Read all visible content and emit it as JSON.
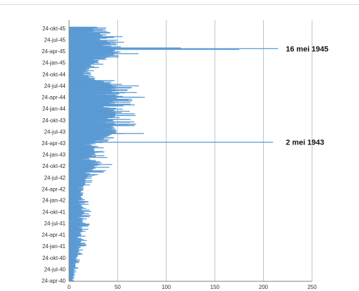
{
  "chart_data": {
    "type": "bar",
    "orientation": "horizontal",
    "title": "",
    "xlabel": "",
    "ylabel": "",
    "xlim": [
      0,
      250
    ],
    "x_ticks": [
      "0",
      "50",
      "100",
      "150",
      "200",
      "250"
    ],
    "y_tick_labels": [
      "24-apr-40",
      "24-jul-40",
      "24-okt-40",
      "24-jan-41",
      "24-apr-41",
      "24-jul-41",
      "24-okt-41",
      "24-jan-42",
      "24-apr-42",
      "24-jul-42",
      "24-okt-42",
      "24-jan-43",
      "24-apr-43",
      "24-jul-43",
      "24-okt-43",
      "24-jan-44",
      "24-apr-44",
      "24-jul-44",
      "24-okt-44",
      "24-jan-45",
      "24-apr-45",
      "24-jul-45",
      "24-okt-45"
    ],
    "grid": "vertical",
    "color": "#5b9bd5",
    "profile": [
      [
        "1940-04-24",
        3
      ],
      [
        "1940-07-24",
        5
      ],
      [
        "1940-10-24",
        7
      ],
      [
        "1941-01-24",
        10
      ],
      [
        "1941-04-24",
        11
      ],
      [
        "1941-07-24",
        12
      ],
      [
        "1941-10-24",
        13
      ],
      [
        "1942-01-24",
        11
      ],
      [
        "1942-04-24",
        12
      ],
      [
        "1942-07-24",
        15
      ],
      [
        "1942-10-24",
        26
      ],
      [
        "1943-01-24",
        22
      ],
      [
        "1943-04-24",
        20
      ],
      [
        "1943-07-24",
        40
      ],
      [
        "1943-10-24",
        38
      ],
      [
        "1944-01-24",
        40
      ],
      [
        "1944-04-24",
        42
      ],
      [
        "1944-07-24",
        40
      ],
      [
        "1944-10-24",
        12
      ],
      [
        "1945-01-24",
        22
      ],
      [
        "1945-04-24",
        45
      ],
      [
        "1945-07-24",
        30
      ],
      [
        "1945-10-24",
        25
      ]
    ],
    "peaks": [
      {
        "date": "1943-05-02",
        "value": 210
      },
      {
        "date": "1945-05-16",
        "value": 215
      },
      {
        "date": "1945-05-10",
        "value": 175
      },
      {
        "date": "1945-05-22",
        "value": 115
      },
      {
        "date": "1944-07-24",
        "value": 72
      },
      {
        "date": "1944-04-24",
        "value": 78
      },
      {
        "date": "1943-07-10",
        "value": 77
      },
      {
        "date": "1945-08-20",
        "value": 55
      }
    ],
    "annotations": [
      {
        "label": "16 mei 1945",
        "date": "1945-05-16"
      },
      {
        "label": "2 mei 1943",
        "date": "1943-05-02"
      }
    ]
  }
}
